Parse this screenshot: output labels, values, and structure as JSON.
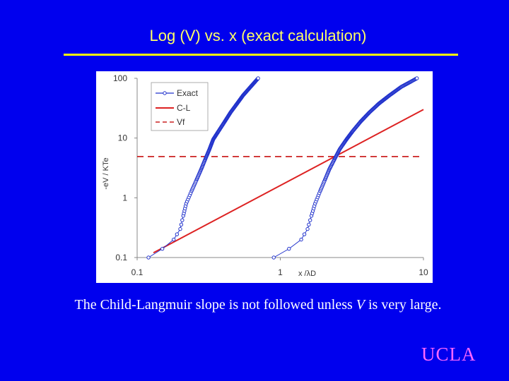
{
  "slide": {
    "title": "Log (V) vs. x  (exact calculation)",
    "caption_pre": "The Child-Langmuir slope is not followed unless ",
    "caption_var": "V",
    "caption_post": " is very large.",
    "logo": "UCLA"
  },
  "colors": {
    "background": "#0000ee",
    "title": "#ffff66",
    "exact": "#2233cc",
    "cl": "#dd2222",
    "vf": "#cc2222",
    "logo": "#ff66ff"
  },
  "chart_data": {
    "type": "line",
    "xscale": "log",
    "yscale": "log",
    "xlim": [
      0.1,
      10
    ],
    "ylim": [
      0.1,
      100
    ],
    "xticks": [
      "0.1",
      "1",
      "10"
    ],
    "yticks": [
      "0.1",
      "1",
      "10",
      "100"
    ],
    "xlabel": "x /λD",
    "ylabel": "-eV / KTe",
    "legend_position": "top-left",
    "series": [
      {
        "name": "Exact",
        "style": "line-circle-markers",
        "curves": [
          [
            [
              0.12,
              0.1
            ],
            [
              0.15,
              0.14
            ],
            [
              0.18,
              0.2
            ],
            [
              0.2,
              0.3
            ],
            [
              0.21,
              0.5
            ],
            [
              0.22,
              0.8
            ],
            [
              0.24,
              1.3
            ],
            [
              0.26,
              2.0
            ],
            [
              0.28,
              3.0
            ],
            [
              0.3,
              4.5
            ],
            [
              0.32,
              6.5
            ],
            [
              0.34,
              9.5
            ],
            [
              0.37,
              13
            ],
            [
              0.41,
              19
            ],
            [
              0.45,
              27
            ],
            [
              0.5,
              38
            ],
            [
              0.55,
              52
            ],
            [
              0.62,
              72
            ],
            [
              0.7,
              100
            ]
          ],
          [
            [
              0.9,
              0.1
            ],
            [
              1.15,
              0.14
            ],
            [
              1.4,
              0.2
            ],
            [
              1.55,
              0.3
            ],
            [
              1.65,
              0.5
            ],
            [
              1.75,
              0.8
            ],
            [
              1.9,
              1.3
            ],
            [
              2.05,
              2.0
            ],
            [
              2.2,
              3.0
            ],
            [
              2.4,
              4.5
            ],
            [
              2.6,
              6.5
            ],
            [
              2.9,
              9.5
            ],
            [
              3.2,
              13
            ],
            [
              3.65,
              19
            ],
            [
              4.2,
              27
            ],
            [
              4.9,
              38
            ],
            [
              5.8,
              52
            ],
            [
              7.0,
              72
            ],
            [
              9.0,
              100
            ]
          ]
        ]
      },
      {
        "name": "C-L",
        "style": "solid",
        "points": [
          [
            0.13,
            0.12
          ],
          [
            10,
            30
          ]
        ]
      },
      {
        "name": "Vf",
        "style": "dashed",
        "points": [
          [
            0.1,
            4.9
          ],
          [
            10,
            4.9
          ]
        ]
      }
    ]
  }
}
